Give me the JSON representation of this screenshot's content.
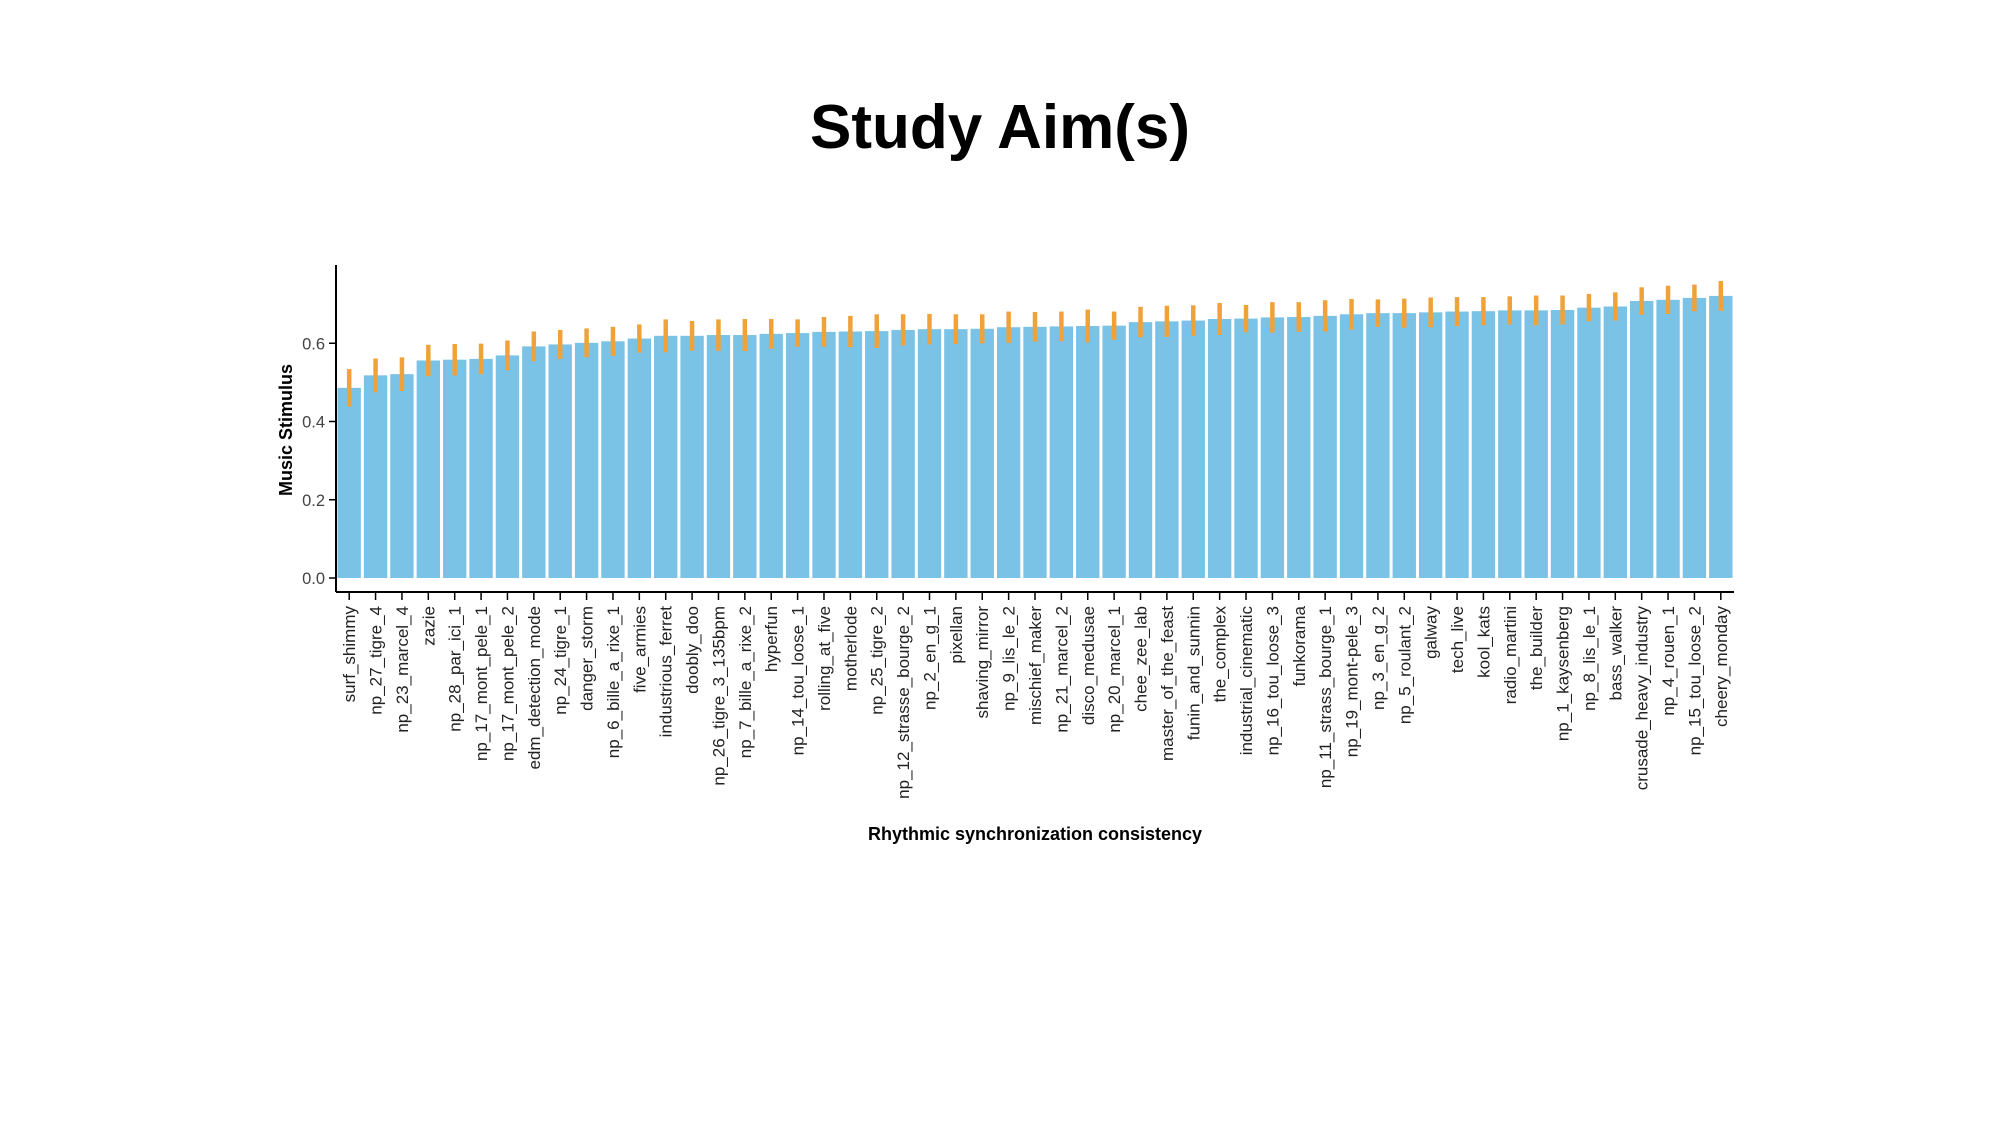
{
  "slide": {
    "title": "Study Aim(s)"
  },
  "chart_data": {
    "type": "bar",
    "xlabel": "Rhythmic synchronization consistency",
    "ylabel": "Music Stimulus",
    "ylim": [
      0,
      0.8
    ],
    "yticks": [
      "0.0",
      "0.2",
      "0.4",
      "0.6"
    ],
    "grid": false,
    "colors": {
      "bar": "#7bc3e6",
      "error_bar": "#f0a23a",
      "axis": "#000000"
    },
    "categories": [
      "surf_shimmy",
      "np_27_tigre_4",
      "np_23_marcel_4",
      "zazie",
      "np_28_par_ici_1",
      "np_17_mont_pele_1",
      "np_17_mont_pele_2",
      "edm_detection_mode",
      "np_24_tigre_1",
      "danger_storm",
      "np_6_bille_a_rixe_1",
      "five_armies",
      "industrious_ferret",
      "doobly_doo",
      "np_26_tigre_3_135bpm",
      "np_7_bille_a_rixe_2",
      "hyperfun",
      "np_14_tou_loose_1",
      "rolling_at_five",
      "motherlode",
      "np_25_tigre_2",
      "np_12_strasse_bourge_2",
      "np_2_en_g_1",
      "pixellan",
      "shaving_mirror",
      "np_9_lis_le_2",
      "mischief_maker",
      "np_21_marcel_2",
      "disco_medusae",
      "np_20_marcel_1",
      "chee_zee_lab",
      "master_of_the_feast",
      "funin_and_sunnin",
      "the_complex",
      "industrial_cinematic",
      "np_16_tou_loose_3",
      "funkorama",
      "np_11_strass_bourge_1",
      "np_19_mont-pele_3",
      "np_3_en_g_2",
      "np_5_roulant_2",
      "galway",
      "tech_live",
      "kool_kats",
      "radio_martini",
      "the_builder",
      "np_1_kaysenberg",
      "np_8_lis_le_1",
      "bass_walker",
      "crusade_heavy_industry",
      "np_4_rouen_1",
      "np_15_tou_loose_2",
      "cheery_monday"
    ],
    "values": [
      0.486,
      0.518,
      0.521,
      0.556,
      0.558,
      0.56,
      0.569,
      0.592,
      0.597,
      0.601,
      0.605,
      0.612,
      0.619,
      0.619,
      0.621,
      0.621,
      0.624,
      0.626,
      0.629,
      0.63,
      0.631,
      0.634,
      0.636,
      0.636,
      0.637,
      0.641,
      0.642,
      0.643,
      0.644,
      0.645,
      0.654,
      0.656,
      0.658,
      0.662,
      0.663,
      0.666,
      0.667,
      0.67,
      0.674,
      0.677,
      0.677,
      0.679,
      0.681,
      0.682,
      0.684,
      0.684,
      0.685,
      0.691,
      0.694,
      0.708,
      0.711,
      0.716,
      0.721
    ],
    "errors": [
      0.048,
      0.043,
      0.043,
      0.04,
      0.04,
      0.039,
      0.038,
      0.038,
      0.037,
      0.037,
      0.037,
      0.036,
      0.042,
      0.038,
      0.04,
      0.041,
      0.038,
      0.035,
      0.038,
      0.04,
      0.043,
      0.04,
      0.039,
      0.038,
      0.037,
      0.04,
      0.038,
      0.038,
      0.042,
      0.036,
      0.039,
      0.04,
      0.039,
      0.041,
      0.035,
      0.039,
      0.038,
      0.04,
      0.039,
      0.035,
      0.037,
      0.038,
      0.037,
      0.036,
      0.036,
      0.038,
      0.037,
      0.035,
      0.036,
      0.035,
      0.036,
      0.034,
      0.038
    ]
  }
}
